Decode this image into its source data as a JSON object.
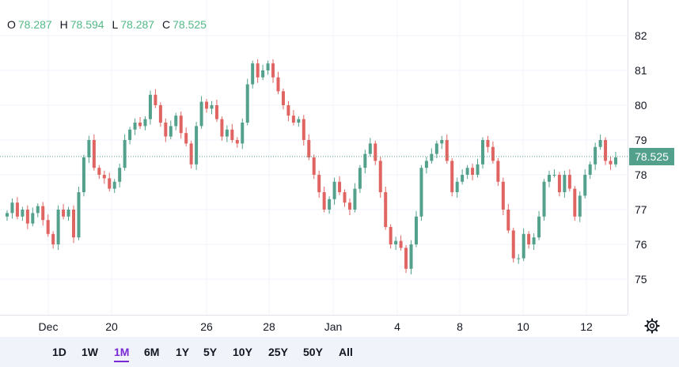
{
  "legend": {
    "o_label": "O",
    "o_value": "78.287",
    "h_label": "H",
    "h_value": "78.594",
    "l_label": "L",
    "l_value": "78.287",
    "c_label": "C",
    "c_value": "78.525"
  },
  "current_price": "78.525",
  "colors": {
    "up": "#53a18c",
    "down": "#e06461",
    "last_price_line": "#53a18c",
    "active_range": "#7a28d6"
  },
  "range_buttons": [
    "1D",
    "1W",
    "1M",
    "6M",
    "1Y",
    "5Y",
    "10Y",
    "25Y",
    "50Y",
    "All"
  ],
  "active_range": "1M",
  "chart_data": {
    "type": "candlestick",
    "title": "",
    "xlabel": "",
    "ylabel": "",
    "y_ticks": [
      "82",
      "81",
      "80",
      "79",
      "78",
      "77",
      "76",
      "75"
    ],
    "ylim": [
      74.2,
      82.9
    ],
    "x_ticks": [
      "Dec",
      "20",
      "26",
      "28",
      "Jan",
      "4",
      "8",
      "10",
      "12"
    ],
    "grid": true,
    "close_series": [
      76.9,
      77.2,
      76.8,
      77.0,
      76.6,
      76.9,
      77.1,
      76.7,
      76.3,
      76.0,
      77.0,
      76.8,
      77.0,
      76.2,
      77.5,
      78.5,
      79.0,
      78.2,
      78.0,
      77.9,
      77.6,
      77.8,
      78.2,
      79.0,
      79.3,
      79.5,
      79.4,
      79.6,
      80.3,
      80.0,
      79.5,
      79.1,
      79.4,
      79.7,
      79.2,
      78.9,
      78.3,
      79.4,
      80.1,
      79.9,
      80.0,
      79.6,
      79.1,
      79.3,
      79.0,
      78.9,
      79.5,
      80.6,
      81.2,
      80.8,
      81.0,
      81.2,
      80.8,
      80.4,
      80.0,
      79.7,
      79.5,
      79.6,
      79.0,
      78.5,
      78.0,
      77.5,
      77.0,
      77.3,
      77.8,
      77.5,
      77.2,
      77.0,
      77.6,
      78.2,
      78.6,
      78.9,
      78.4,
      77.5,
      76.5,
      76.0,
      76.1,
      75.9,
      75.3,
      76.0,
      76.8,
      78.2,
      78.4,
      78.6,
      78.9,
      79.0,
      78.4,
      77.5,
      77.8,
      78.0,
      78.2,
      78.0,
      78.3,
      79.0,
      78.8,
      78.4,
      77.8,
      77.0,
      76.4,
      75.6,
      75.6,
      76.3,
      76.0,
      76.2,
      76.8,
      77.8,
      78.0,
      78.0,
      77.5,
      78.0,
      77.6,
      76.8,
      77.4,
      78.0,
      78.3,
      78.8,
      79.0,
      78.4,
      78.3,
      78.5
    ]
  }
}
